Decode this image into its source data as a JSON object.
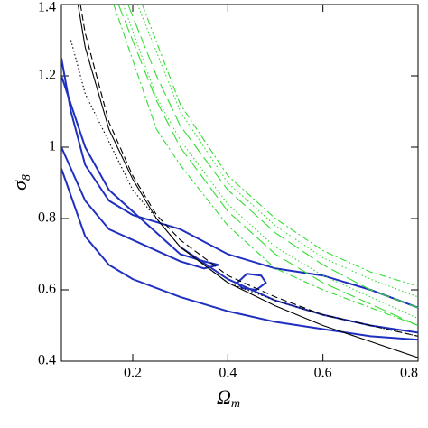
{
  "chart_data": {
    "type": "line",
    "xlabel": "Ω",
    "xlabel_subscript": "m",
    "ylabel": "σ",
    "ylabel_subscript": "8",
    "xlim": [
      0.05,
      0.8
    ],
    "xticks": [
      0.2,
      0.4,
      0.6,
      0.8
    ],
    "ylim": [
      0.4,
      1.4
    ],
    "yticks": [
      0.4,
      0.6,
      0.8,
      1,
      1.2,
      1.4
    ],
    "series": [
      {
        "color": "#1f2fbf",
        "dash": "none",
        "x": [
          0.05,
          0.07,
          0.1,
          0.15,
          0.2,
          0.3,
          0.4,
          0.5,
          0.6,
          0.7,
          0.8
        ],
        "values": [
          1.25,
          1.1,
          0.95,
          0.85,
          0.81,
          0.77,
          0.7,
          0.66,
          0.64,
          0.6,
          0.55
        ]
      },
      {
        "color": "#1f2fbf",
        "dash": "none",
        "x": [
          0.05,
          0.1,
          0.15,
          0.2,
          0.3,
          0.4,
          0.5,
          0.6,
          0.7,
          0.8
        ],
        "values": [
          0.94,
          0.75,
          0.67,
          0.63,
          0.58,
          0.54,
          0.51,
          0.49,
          0.47,
          0.46
        ]
      },
      {
        "color": "#1f2fbf",
        "dash": "none",
        "x": [
          0.05,
          0.1,
          0.15,
          0.2,
          0.25,
          0.3,
          0.35,
          0.38,
          0.35,
          0.3,
          0.25,
          0.2,
          0.15,
          0.1,
          0.05
        ],
        "values": [
          1.2,
          1.0,
          0.88,
          0.82,
          0.76,
          0.7,
          0.68,
          0.67,
          0.66,
          0.68,
          0.71,
          0.74,
          0.77,
          0.85,
          1.0
        ]
      },
      {
        "color": "#1f2fbf",
        "dash": "none",
        "x": [
          0.3,
          0.4,
          0.5,
          0.6,
          0.7,
          0.8
        ],
        "values": [
          0.72,
          0.63,
          0.57,
          0.53,
          0.5,
          0.48
        ]
      },
      {
        "color": "#1f2fbf",
        "dash": "none",
        "x": [
          0.42,
          0.44,
          0.47,
          0.48,
          0.46,
          0.43,
          0.42
        ],
        "values": [
          0.62,
          0.645,
          0.64,
          0.62,
          0.6,
          0.605,
          0.62
        ]
      },
      {
        "color": "#000000",
        "dash": "none",
        "x": [
          0.085,
          0.1,
          0.15,
          0.2,
          0.25,
          0.3,
          0.4,
          0.5,
          0.6,
          0.7,
          0.8
        ],
        "values": [
          1.4,
          1.28,
          1.05,
          0.91,
          0.8,
          0.72,
          0.62,
          0.555,
          0.5,
          0.455,
          0.41
        ]
      },
      {
        "color": "#000000",
        "dash": "7 4",
        "x": [
          0.09,
          0.1,
          0.15,
          0.2,
          0.25,
          0.3,
          0.4,
          0.5,
          0.6,
          0.7,
          0.8
        ],
        "values": [
          1.4,
          1.32,
          1.07,
          0.92,
          0.81,
          0.74,
          0.64,
          0.58,
          0.53,
          0.5,
          0.47
        ]
      },
      {
        "color": "#000000",
        "dash": "1.5 2.5",
        "x": [
          0.07,
          0.1,
          0.2,
          0.3,
          0.4,
          0.5,
          0.6,
          0.8
        ],
        "values": [
          1.3,
          1.15,
          0.88,
          0.72,
          0.62,
          0.57,
          0.53,
          0.47
        ]
      },
      {
        "color": "#33dd33",
        "dash": "14 5",
        "x": [
          0.19,
          0.25,
          0.3,
          0.4,
          0.5,
          0.6,
          0.7,
          0.8
        ],
        "values": [
          1.4,
          1.2,
          1.06,
          0.88,
          0.76,
          0.67,
          0.6,
          0.55
        ]
      },
      {
        "color": "#33dd33",
        "dash": "14 5",
        "x": [
          0.17,
          0.25,
          0.3,
          0.4,
          0.5,
          0.6,
          0.7,
          0.8
        ],
        "values": [
          1.4,
          1.13,
          1.0,
          0.82,
          0.7,
          0.62,
          0.56,
          0.5
        ]
      },
      {
        "color": "#33dd33",
        "dash": "1.5 2.5",
        "x": [
          0.21,
          0.3,
          0.4,
          0.5,
          0.6,
          0.7,
          0.8
        ],
        "values": [
          1.4,
          1.1,
          0.9,
          0.78,
          0.69,
          0.63,
          0.58
        ]
      },
      {
        "color": "#33dd33",
        "dash": "1.5 2.5",
        "x": [
          0.18,
          0.25,
          0.3,
          0.4,
          0.5,
          0.6,
          0.7,
          0.8
        ],
        "values": [
          1.4,
          1.14,
          1.02,
          0.84,
          0.72,
          0.64,
          0.58,
          0.52
        ]
      },
      {
        "color": "#33dd33",
        "dash": "8 3 2 3",
        "x": [
          0.22,
          0.3,
          0.4,
          0.5,
          0.6,
          0.7,
          0.8
        ],
        "values": [
          1.4,
          1.12,
          0.92,
          0.8,
          0.71,
          0.65,
          0.61
        ]
      },
      {
        "color": "#33dd33",
        "dash": "8 3 2 3",
        "x": [
          0.16,
          0.25,
          0.3,
          0.4,
          0.5,
          0.6,
          0.7,
          0.8
        ],
        "values": [
          1.4,
          1.05,
          0.95,
          0.78,
          0.66,
          0.6,
          0.55,
          0.5
        ]
      }
    ]
  }
}
